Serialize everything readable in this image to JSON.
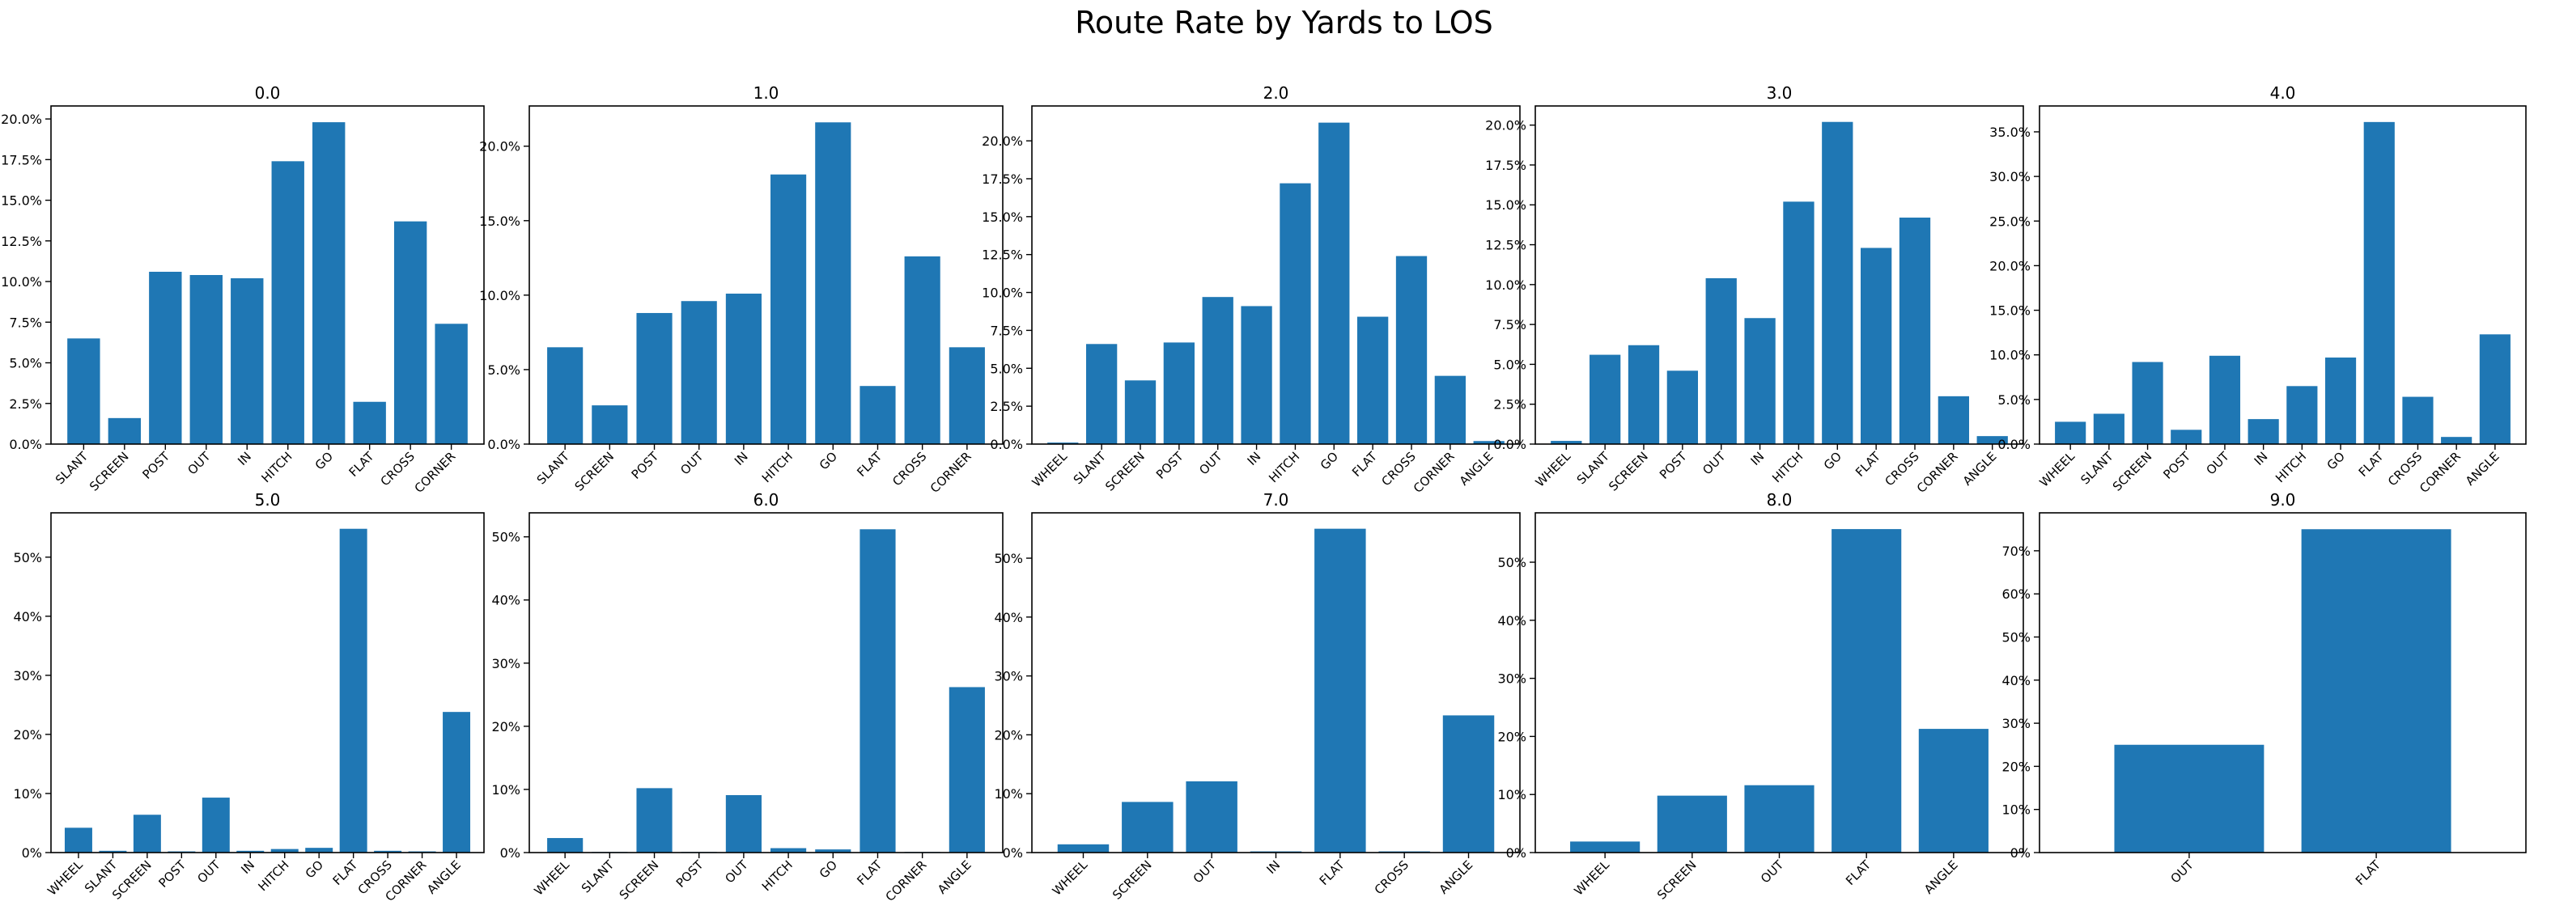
{
  "suptitle": "Route Rate by Yards to LOS",
  "bar_color": "#1f77b4",
  "chart_data": [
    {
      "type": "bar",
      "title": "0.0",
      "categories": [
        "SLANT",
        "SCREEN",
        "POST",
        "OUT",
        "IN",
        "HITCH",
        "GO",
        "FLAT",
        "CROSS",
        "CORNER"
      ],
      "values": [
        6.5,
        1.6,
        10.6,
        10.4,
        10.2,
        17.4,
        19.8,
        2.6,
        13.7,
        7.4
      ],
      "ylim": [
        0,
        20.8
      ],
      "yticks": [
        0,
        2.5,
        5,
        7.5,
        10,
        12.5,
        15,
        17.5,
        20
      ],
      "tick_decimals": 1
    },
    {
      "type": "bar",
      "title": "1.0",
      "categories": [
        "SLANT",
        "SCREEN",
        "POST",
        "OUT",
        "IN",
        "HITCH",
        "GO",
        "FLAT",
        "CROSS",
        "CORNER"
      ],
      "values": [
        6.5,
        2.6,
        8.8,
        9.6,
        10.1,
        18.1,
        21.6,
        3.9,
        12.6,
        6.5
      ],
      "ylim": [
        0,
        22.7
      ],
      "yticks": [
        0,
        5,
        10,
        15,
        20
      ],
      "tick_decimals": 1
    },
    {
      "type": "bar",
      "title": "2.0",
      "categories": [
        "WHEEL",
        "SLANT",
        "SCREEN",
        "POST",
        "OUT",
        "IN",
        "HITCH",
        "GO",
        "FLAT",
        "CROSS",
        "CORNER",
        "ANGLE"
      ],
      "values": [
        0.1,
        6.6,
        4.2,
        6.7,
        9.7,
        9.1,
        17.2,
        21.2,
        8.4,
        12.4,
        4.5,
        0.2
      ],
      "ylim": [
        0,
        22.3
      ],
      "yticks": [
        0,
        2.5,
        5,
        7.5,
        10,
        12.5,
        15,
        17.5,
        20
      ],
      "tick_decimals": 1
    },
    {
      "type": "bar",
      "title": "3.0",
      "categories": [
        "WHEEL",
        "SLANT",
        "SCREEN",
        "POST",
        "OUT",
        "IN",
        "HITCH",
        "GO",
        "FLAT",
        "CROSS",
        "CORNER",
        "ANGLE"
      ],
      "values": [
        0.2,
        5.6,
        6.2,
        4.6,
        10.4,
        7.9,
        15.2,
        20.2,
        12.3,
        14.2,
        3.0,
        0.5
      ],
      "ylim": [
        0,
        21.2
      ],
      "yticks": [
        0,
        2.5,
        5,
        7.5,
        10,
        12.5,
        15,
        17.5,
        20
      ],
      "tick_decimals": 1
    },
    {
      "type": "bar",
      "title": "4.0",
      "categories": [
        "WHEEL",
        "SLANT",
        "SCREEN",
        "POST",
        "OUT",
        "IN",
        "HITCH",
        "GO",
        "FLAT",
        "CROSS",
        "CORNER",
        "ANGLE"
      ],
      "values": [
        2.5,
        3.4,
        9.2,
        1.6,
        9.9,
        2.8,
        6.5,
        9.7,
        36.1,
        5.3,
        0.8,
        12.3
      ],
      "ylim": [
        0,
        37.9
      ],
      "yticks": [
        0,
        5,
        10,
        15,
        20,
        25,
        30,
        35
      ],
      "tick_decimals": 1
    },
    {
      "type": "bar",
      "title": "5.0",
      "categories": [
        "WHEEL",
        "SLANT",
        "SCREEN",
        "POST",
        "OUT",
        "IN",
        "HITCH",
        "GO",
        "FLAT",
        "CROSS",
        "CORNER",
        "ANGLE"
      ],
      "values": [
        4.2,
        0.3,
        6.4,
        0.2,
        9.3,
        0.3,
        0.6,
        0.8,
        54.8,
        0.3,
        0.2,
        23.8
      ],
      "ylim": [
        0,
        57.5
      ],
      "yticks": [
        0,
        10,
        20,
        30,
        40,
        50
      ],
      "tick_decimals": 0
    },
    {
      "type": "bar",
      "title": "6.0",
      "categories": [
        "WHEEL",
        "SLANT",
        "SCREEN",
        "POST",
        "OUT",
        "HITCH",
        "GO",
        "FLAT",
        "CORNER",
        "ANGLE"
      ],
      "values": [
        2.3,
        0.1,
        10.2,
        0.1,
        9.1,
        0.7,
        0.5,
        51.2,
        0.1,
        26.2
      ],
      "ylim": [
        0,
        53.8
      ],
      "yticks": [
        0,
        10,
        20,
        30,
        40,
        50
      ],
      "tick_decimals": 0
    },
    {
      "type": "bar",
      "title": "7.0",
      "categories": [
        "WHEEL",
        "SCREEN",
        "OUT",
        "IN",
        "FLAT",
        "CROSS",
        "ANGLE"
      ],
      "values": [
        1.4,
        8.6,
        12.1,
        0.2,
        55.0,
        0.2,
        23.3
      ],
      "ylim": [
        0,
        57.7
      ],
      "yticks": [
        0,
        10,
        20,
        30,
        40,
        50
      ],
      "tick_decimals": 0
    },
    {
      "type": "bar",
      "title": "8.0",
      "categories": [
        "WHEEL",
        "SCREEN",
        "OUT",
        "FLAT",
        "ANGLE"
      ],
      "values": [
        1.9,
        9.8,
        11.6,
        55.7,
        21.3
      ],
      "ylim": [
        0,
        58.5
      ],
      "yticks": [
        0,
        10,
        20,
        30,
        40,
        50
      ],
      "tick_decimals": 0
    },
    {
      "type": "bar",
      "title": "9.0",
      "categories": [
        "OUT",
        "FLAT"
      ],
      "values": [
        25.0,
        75.0
      ],
      "ylim": [
        0,
        78.8
      ],
      "yticks": [
        0,
        10,
        20,
        30,
        40,
        50,
        60,
        70
      ],
      "tick_decimals": 0
    }
  ]
}
